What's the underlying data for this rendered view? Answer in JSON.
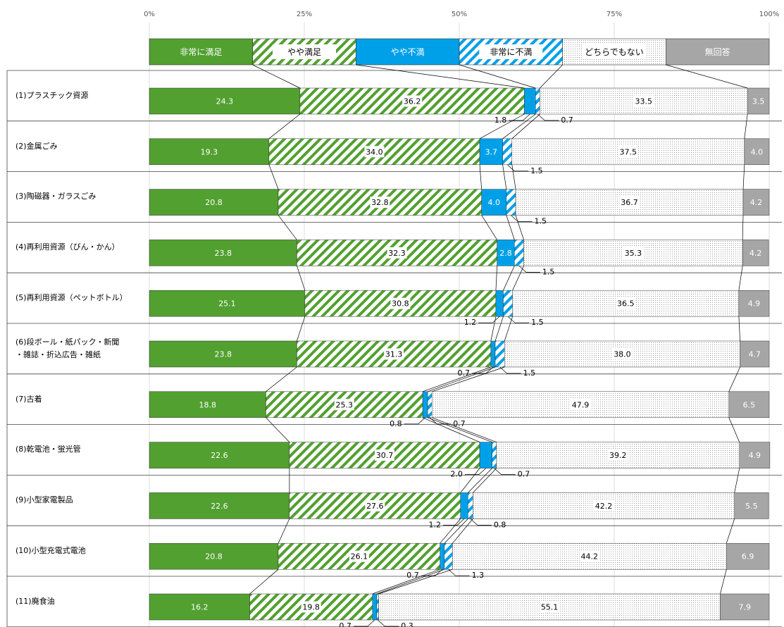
{
  "chart_data": {
    "type": "stacked_bar_horizontal",
    "categories": [
      "(1)プラスチック資源",
      "(2)金属ごみ",
      "(3)陶磁器・ガラスごみ",
      "(4)再利用資源（びん・かん）",
      "(5)再利用資源（ペットボトル）",
      "(6)段ボール・紙パック・新聞\n・雑誌・折込広告・雑紙",
      "(7)古着",
      "(8)乾電池・蛍光管",
      "(9)小型家電製品",
      "(10)小型充電式電池",
      "(11)廃食油"
    ],
    "series": [
      {
        "name": "非常に満足",
        "color": "#52a030",
        "fill_style": "solid",
        "values": [
          24.3,
          19.3,
          20.8,
          23.8,
          25.1,
          23.8,
          18.8,
          22.6,
          22.6,
          20.8,
          16.2
        ]
      },
      {
        "name": "やや満足",
        "color": "#52a030",
        "fill_style": "hatch",
        "values": [
          36.2,
          34.0,
          32.8,
          32.3,
          30.8,
          31.3,
          25.3,
          30.7,
          27.6,
          26.1,
          19.8
        ],
        "value_labels": [
          "36.2",
          "34.0",
          "32.8",
          "32.3",
          "30.8",
          "31.3",
          "25.3",
          "30.7",
          "27.6",
          "26.1",
          "19.8"
        ]
      },
      {
        "name": "やや不満",
        "color": "#00a0e9",
        "fill_style": "solid",
        "values": [
          1.8,
          3.7,
          4.0,
          2.8,
          1.2,
          0.7,
          0.8,
          2.0,
          1.2,
          0.7,
          0.7
        ],
        "value_labels": [
          "1.8",
          "3.7",
          "4.0",
          "2.8",
          "1.2",
          "0.7",
          "0.8",
          "2.0",
          "1.2",
          "0.7",
          "0.7"
        ]
      },
      {
        "name": "非常に不満",
        "color": "#00a0e9",
        "fill_style": "hatch",
        "values": [
          0.7,
          1.5,
          1.5,
          1.5,
          1.5,
          1.5,
          0.7,
          0.7,
          0.8,
          1.3,
          0.3
        ]
      },
      {
        "name": "どちらでもない",
        "color": "#9a9a9a",
        "fill_style": "dots",
        "values": [
          33.5,
          37.5,
          36.7,
          35.3,
          36.5,
          38.0,
          47.9,
          39.2,
          42.2,
          44.2,
          55.1
        ],
        "value_labels": [
          "33.5",
          "37.5",
          "36.7",
          "35.3",
          "36.5",
          "38.0",
          "47.9",
          "39.2",
          "42.2",
          "44.2",
          "55.1"
        ]
      },
      {
        "name": "無回答",
        "color": "#a6a6a6",
        "fill_style": "solid",
        "values": [
          3.5,
          4.0,
          4.2,
          4.2,
          4.9,
          4.7,
          6.5,
          4.9,
          5.5,
          6.9,
          7.9
        ],
        "value_labels": [
          "3.5",
          "4.0",
          "4.2",
          "4.2",
          "4.9",
          "4.7",
          "6.5",
          "4.9",
          "5.5",
          "6.9",
          "7.9"
        ]
      }
    ],
    "xlim": [
      0,
      100
    ],
    "xticks": [
      {
        "value": 0,
        "label": "0%"
      },
      {
        "value": 25,
        "label": "25%"
      },
      {
        "value": 50,
        "label": "50%"
      },
      {
        "value": 75,
        "label": "75%"
      },
      {
        "value": 100,
        "label": "100%"
      }
    ],
    "grid": true,
    "legend": "top"
  }
}
